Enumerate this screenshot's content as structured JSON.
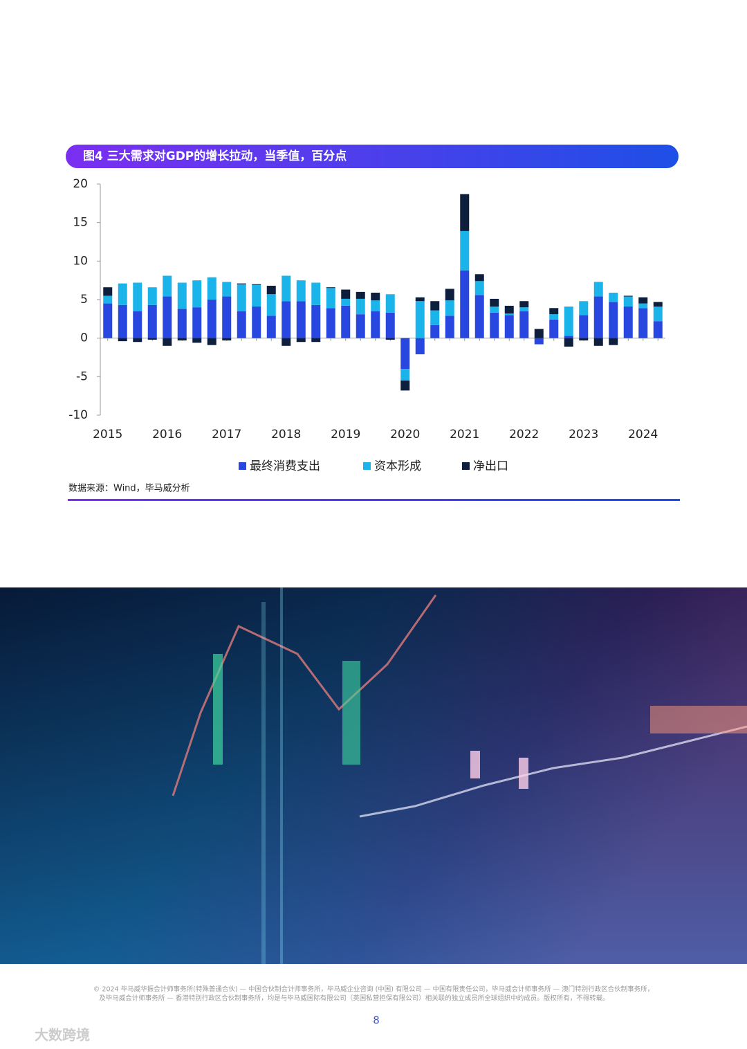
{
  "chart_data": {
    "type": "bar",
    "stacked": true,
    "title": "图4 三大需求对GDP的增长拉动，当季值，百分点",
    "categories": [
      "2015",
      null,
      null,
      null,
      "2016",
      null,
      null,
      null,
      "2017",
      null,
      null,
      null,
      "2018",
      null,
      null,
      null,
      "2019",
      null,
      null,
      null,
      "2020",
      null,
      null,
      null,
      "2021",
      null,
      null,
      null,
      "2022",
      null,
      null,
      null,
      "2023",
      null,
      null,
      null,
      "2024",
      null
    ],
    "series": [
      {
        "name": "最终消费支出",
        "color": "#2747e0",
        "values": [
          4.5,
          4.3,
          3.5,
          4.3,
          5.4,
          3.8,
          4.0,
          5.0,
          5.4,
          3.5,
          4.1,
          2.9,
          4.8,
          4.8,
          4.3,
          3.9,
          4.2,
          3.1,
          3.5,
          3.3,
          -4.0,
          -2.1,
          1.7,
          2.9,
          8.8,
          5.6,
          3.3,
          3.0,
          3.5,
          -0.8,
          2.4,
          0.3,
          3.0,
          5.4,
          4.7,
          4.1,
          3.9,
          2.2
        ]
      },
      {
        "name": "资本形成",
        "color": "#1ab4ea",
        "values": [
          1.0,
          2.8,
          3.7,
          2.3,
          2.7,
          3.4,
          3.5,
          2.9,
          1.9,
          3.5,
          2.8,
          2.8,
          3.3,
          2.7,
          2.9,
          2.6,
          0.9,
          2.0,
          1.4,
          2.4,
          -1.5,
          4.8,
          1.9,
          2.0,
          5.1,
          1.8,
          0.8,
          0.2,
          0.5,
          0.0,
          0.7,
          3.8,
          1.8,
          1.9,
          1.2,
          1.3,
          0.6,
          1.9
        ]
      },
      {
        "name": "净出口",
        "color": "#0e1f3d",
        "values": [
          1.1,
          -0.4,
          -0.5,
          -0.2,
          -1.0,
          -0.3,
          -0.6,
          -0.9,
          -0.3,
          0.1,
          0.1,
          1.1,
          -1.0,
          -0.5,
          -0.5,
          0.1,
          1.2,
          0.9,
          1.0,
          -0.2,
          -1.3,
          0.5,
          1.2,
          1.5,
          4.8,
          0.9,
          1.0,
          1.0,
          0.8,
          1.2,
          0.8,
          -1.1,
          -0.3,
          -1.0,
          -0.9,
          0.1,
          0.8,
          0.6
        ]
      }
    ],
    "ylim": [
      -10,
      20
    ],
    "yticks": [
      -10,
      -5,
      0,
      5,
      10,
      15,
      20
    ],
    "legend": "bottom",
    "source": "数据来源：Wind，毕马威分析"
  },
  "footer": {
    "lines": [
      "© 2024 毕马威华振会计师事务所(特殊普通合伙) — 中国合伙制会计师事务所，毕马威企业咨询 (中国) 有限公司 — 中国有限责任公司，毕马威会计师事务所 — 澳门特别行政区合伙制事务所，",
      "及毕马威会计师事务所 — 香港特别行政区合伙制事务所，均是与毕马威国际有限公司（英国私营担保有限公司）相关联的独立成员所全球组织中的成员。版权所有，不得转载。"
    ],
    "page_number": "8"
  },
  "watermark": "大数跨境"
}
